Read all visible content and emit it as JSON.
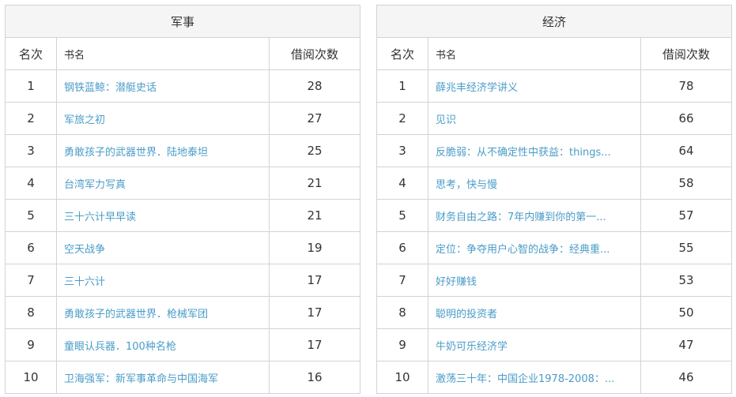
{
  "tables": [
    {
      "title": "军事",
      "headers": {
        "rank": "名次",
        "name": "书名",
        "count": "借阅次数"
      },
      "rows": [
        {
          "rank": "1",
          "name": "钢铁蓝鲸：潜艇史话",
          "count": "28"
        },
        {
          "rank": "2",
          "name": "军旅之初",
          "count": "27"
        },
        {
          "rank": "3",
          "name": "勇敢孩子的武器世界．陆地泰坦",
          "count": "25"
        },
        {
          "rank": "4",
          "name": "台湾军力写真",
          "count": "21"
        },
        {
          "rank": "5",
          "name": "三十六计早早读",
          "count": "21"
        },
        {
          "rank": "6",
          "name": "空天战争",
          "count": "19"
        },
        {
          "rank": "7",
          "name": "三十六计",
          "count": "17"
        },
        {
          "rank": "8",
          "name": "勇敢孩子的武器世界．枪械军团",
          "count": "17"
        },
        {
          "rank": "9",
          "name": "童眼认兵器．100种名枪",
          "count": "17"
        },
        {
          "rank": "10",
          "name": "卫海强军：新军事革命与中国海军",
          "count": "16"
        }
      ]
    },
    {
      "title": "经济",
      "headers": {
        "rank": "名次",
        "name": "书名",
        "count": "借阅次数"
      },
      "rows": [
        {
          "rank": "1",
          "name": "薛兆丰经济学讲义",
          "count": "78"
        },
        {
          "rank": "2",
          "name": "见识",
          "count": "66"
        },
        {
          "rank": "3",
          "name": "反脆弱：从不确定性中获益：things...",
          "count": "64"
        },
        {
          "rank": "4",
          "name": "思考，快与慢",
          "count": "58"
        },
        {
          "rank": "5",
          "name": "财务自由之路：7年内赚到你的第一...",
          "count": "57"
        },
        {
          "rank": "6",
          "name": "定位：争夺用户心智的战争：经典重...",
          "count": "55"
        },
        {
          "rank": "7",
          "name": "好好赚钱",
          "count": "53"
        },
        {
          "rank": "8",
          "name": "聪明的投资者",
          "count": "50"
        },
        {
          "rank": "9",
          "name": "牛奶可乐经济学",
          "count": "47"
        },
        {
          "rank": "10",
          "name": "激荡三十年：中国企业1978-2008：...",
          "count": "46"
        }
      ]
    }
  ],
  "colors": {
    "link": "#4a9cc8",
    "border": "#d3d3d3",
    "title_bg": "#f5f5f5"
  }
}
